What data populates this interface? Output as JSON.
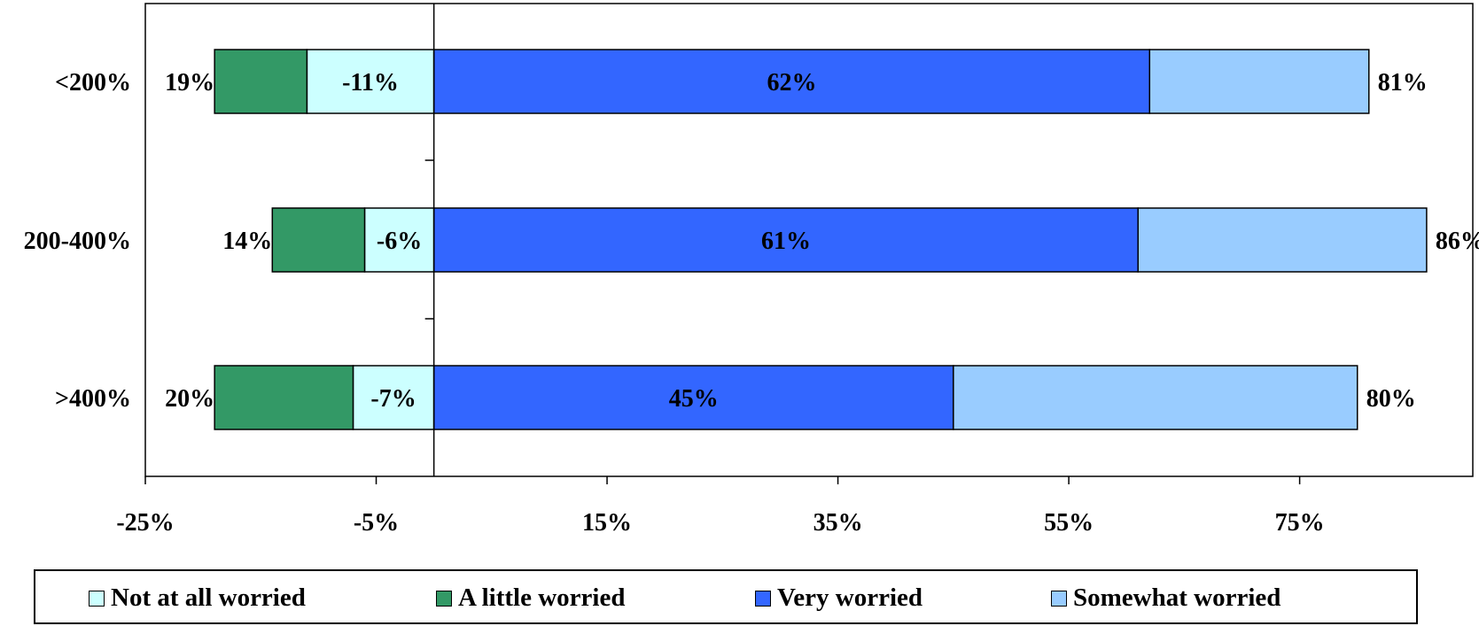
{
  "chart_data": {
    "type": "bar",
    "orientation": "horizontal",
    "stacked": "diverging",
    "categories": [
      "<200%",
      "200-400%",
      ">400%"
    ],
    "xlim": [
      -25,
      90
    ],
    "x_ticks": [
      -25,
      -5,
      15,
      35,
      55,
      75
    ],
    "x_tick_labels": [
      "-25%",
      "-5%",
      "15%",
      "35%",
      "55%",
      "75%"
    ],
    "grid": false,
    "legend_position": "bottom",
    "series": [
      {
        "name": "Not at all worried",
        "color": "#ccffff",
        "values": [
          -11,
          -6,
          -7
        ]
      },
      {
        "name": "A little worried",
        "color": "#339966",
        "values": [
          -8,
          -8,
          -12
        ]
      },
      {
        "name": "Very worried",
        "color": "#3366ff",
        "values": [
          62,
          61,
          45
        ]
      },
      {
        "name": "Somewhat worried",
        "color": "#99ccff",
        "values": [
          19,
          25,
          35
        ]
      }
    ],
    "left_total_labels": [
      "19%",
      "14%",
      "20%"
    ],
    "right_total_labels": [
      "81%",
      "86%",
      "80%"
    ],
    "segment_labels": {
      "Not at all worried": [
        "-11%",
        "-6%",
        "-7%"
      ],
      "Very worried": [
        "62%",
        "61%",
        "45%"
      ]
    }
  },
  "legend": {
    "items": [
      {
        "label": "Not at all worried",
        "color": "#ccffff"
      },
      {
        "label": "A little worried",
        "color": "#339966"
      },
      {
        "label": "Very worried",
        "color": "#3366ff"
      },
      {
        "label": "Somewhat worried",
        "color": "#99ccff"
      }
    ]
  }
}
